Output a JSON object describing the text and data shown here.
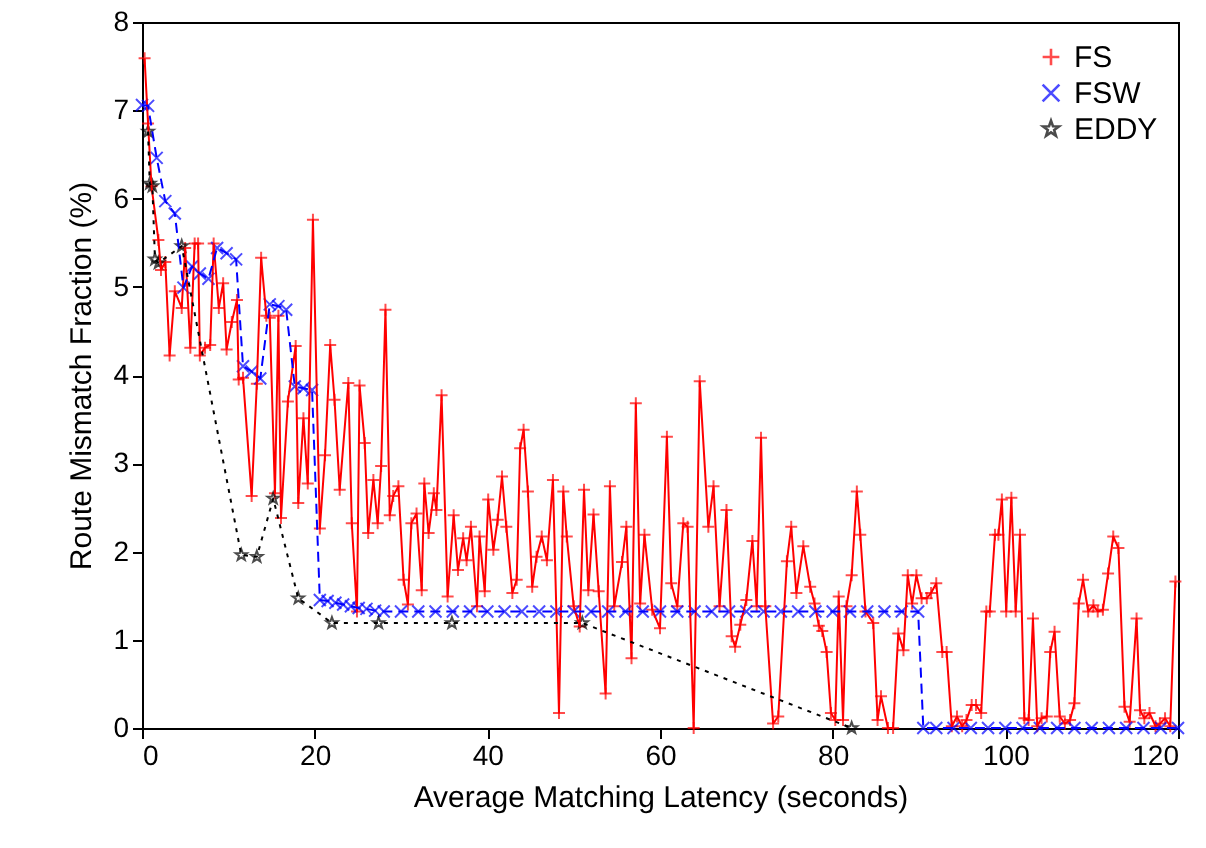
{
  "chart_data": {
    "type": "line",
    "xlabel": "Average Matching Latency (seconds)",
    "ylabel": "Route Mismatch Fraction (%)",
    "xlim": [
      0,
      120
    ],
    "xticks": [
      0,
      20,
      40,
      60,
      80,
      100,
      120
    ],
    "ylim": [
      0,
      8
    ],
    "yticks": [
      0,
      1,
      2,
      3,
      4,
      5,
      6,
      7,
      8
    ],
    "grid": false,
    "legend": "top right",
    "series": [
      {
        "name": "FS",
        "color": "#ff0000",
        "marker": "cross",
        "line_style": "solid",
        "x": [
          0.3,
          0.7,
          1.1,
          1.9,
          2.2,
          2.7,
          3.2,
          3.8,
          4.6,
          5.0,
          5.6,
          6.1,
          6.5,
          6.7,
          7.3,
          7.9,
          8.3,
          8.9,
          9.4,
          9.8,
          10.4,
          11.0,
          11.2,
          11.7,
          12.7,
          13.3,
          13.8,
          14.4,
          14.8,
          15.4,
          15.8,
          16.1,
          16.9,
          17.8,
          18.1,
          18.7,
          19.2,
          19.8,
          20.6,
          21.2,
          21.8,
          22.3,
          22.9,
          23.9,
          24.3,
          24.9,
          25.2,
          25.8,
          26.2,
          26.8,
          27.3,
          27.7,
          28.2,
          28.7,
          29.1,
          29.7,
          30.3,
          30.8,
          31.2,
          31.8,
          32.4,
          32.7,
          33.2,
          33.8,
          34.1,
          34.7,
          35.4,
          36.1,
          36.6,
          37.2,
          37.6,
          38.1,
          38.8,
          39.1,
          39.7,
          40.1,
          40.7,
          41.2,
          41.7,
          42.2,
          42.9,
          43.4,
          43.8,
          44.2,
          44.7,
          45.2,
          45.7,
          46.3,
          46.9,
          47.6,
          48.3,
          48.8,
          49.2,
          50.0,
          50.7,
          51.2,
          51.7,
          52.3,
          52.9,
          53.7,
          54.2,
          54.7,
          55.6,
          56.1,
          56.7,
          57.2,
          57.7,
          58.2,
          59.1,
          60.0,
          60.8,
          61.3,
          62.0,
          62.7,
          63.2,
          63.9,
          64.6,
          65.6,
          66.2,
          66.9,
          67.7,
          68.3,
          68.7,
          69.3,
          70.0,
          70.7,
          71.2,
          71.7,
          72.2,
          73.1,
          73.7,
          74.7,
          75.2,
          75.8,
          76.6,
          77.4,
          77.9,
          78.4,
          78.8,
          79.3,
          79.8,
          80.3,
          80.7,
          81.2,
          81.6,
          82.2,
          82.8,
          83.2,
          83.8,
          84.7,
          85.2,
          85.6,
          86.4,
          87.0,
          87.6,
          88.2,
          88.7,
          89.2,
          89.7,
          90.3,
          90.9,
          91.4,
          92.0,
          92.7,
          93.2,
          93.8,
          94.4,
          95.0,
          95.5,
          96.1,
          96.6,
          97.2,
          97.8,
          98.2,
          98.8,
          99.2,
          99.6,
          100.1,
          100.7,
          101.2,
          101.7,
          102.2,
          102.7,
          103.2,
          103.7,
          104.2,
          104.8,
          105.2,
          105.7,
          106.3,
          106.9,
          107.5,
          108.0,
          108.5,
          109.0,
          109.6,
          110.2,
          110.7,
          111.3,
          111.9,
          112.5,
          113.1,
          113.8,
          114.4,
          115.2,
          115.6,
          116.1,
          116.7,
          117.4,
          117.9,
          118.5,
          119.1,
          119.7
        ],
        "values": [
          7.59,
          6.85,
          6.14,
          5.53,
          5.19,
          5.28,
          4.22,
          4.95,
          4.76,
          5.44,
          4.31,
          5.49,
          5.49,
          4.22,
          4.31,
          4.34,
          5.49,
          4.76,
          5.04,
          4.29,
          4.6,
          4.85,
          3.95,
          3.97,
          2.63,
          3.9,
          5.33,
          4.67,
          4.65,
          2.66,
          4.67,
          2.38,
          3.7,
          4.33,
          2.55,
          3.51,
          2.77,
          5.76,
          2.26,
          3.09,
          4.34,
          3.72,
          2.7,
          3.91,
          2.32,
          1.32,
          3.88,
          3.23,
          2.21,
          2.81,
          2.32,
          2.97,
          4.74,
          2.41,
          2.63,
          2.74,
          1.68,
          1.4,
          2.32,
          2.43,
          1.56,
          2.77,
          2.21,
          2.66,
          2.47,
          3.77,
          1.49,
          2.41,
          1.79,
          2.15,
          1.9,
          2.28,
          1.38,
          2.17,
          1.55,
          2.59,
          2.02,
          2.36,
          2.85,
          2.28,
          1.53,
          1.68,
          3.17,
          3.38,
          2.68,
          1.6,
          1.94,
          2.17,
          1.9,
          2.81,
          0.17,
          2.68,
          2.17,
          1.38,
          1.15,
          2.7,
          1.56,
          2.42,
          1.55,
          0.39,
          2.74,
          1.38,
          1.88,
          2.28,
          0.79,
          3.68,
          1.41,
          2.19,
          1.34,
          1.13,
          3.3,
          1.64,
          1.38,
          2.32,
          2.28,
          0,
          3.93,
          2.28,
          2.74,
          1.38,
          2.47,
          1.04,
          0.92,
          1.17,
          1.45,
          2.12,
          1.38,
          3.29,
          1.38,
          0.05,
          0.13,
          1.89,
          2.28,
          1.53,
          2.06,
          1.6,
          1.41,
          1.16,
          1.1,
          0.86,
          0.17,
          0.09,
          1.49,
          0.09,
          1.38,
          1.73,
          2.68,
          2.19,
          1.32,
          1.19,
          0.09,
          0.36,
          0,
          0,
          1.07,
          0.88,
          1.73,
          1.41,
          1.73,
          1.47,
          1.47,
          1.53,
          1.64,
          0.86,
          0.86,
          0.02,
          0.13,
          0.02,
          0.09,
          0.26,
          0.26,
          0.17,
          1.32,
          1.32,
          2.19,
          2.19,
          2.59,
          1.32,
          2.61,
          1.32,
          2.19,
          0.11,
          0.09,
          1.24,
          0.02,
          0.11,
          0.13,
          0.86,
          1.09,
          0.13,
          0.05,
          0.09,
          0.28,
          1.41,
          1.68,
          1.32,
          1.39,
          1.32,
          1.34,
          1.75,
          2.17,
          2.04,
          0.24,
          0.07,
          1.24,
          0.2,
          0.11,
          0.17,
          0.02,
          0.05,
          0.11,
          0.02,
          1.66
        ]
      },
      {
        "name": "FSW",
        "color": "#0000ff",
        "marker": "x",
        "line_style": "dashed",
        "x": [
          0,
          0.7,
          1.7,
          2.7,
          3.8,
          4.8,
          5.8,
          6.7,
          7.7,
          8.7,
          9.8,
          10.9,
          11.7,
          12.7,
          13.7,
          14.8,
          15.8,
          16.7,
          17.7,
          18.7,
          19.7,
          20.6,
          21.5,
          22.4,
          23.3,
          24.2,
          25.1,
          26,
          27,
          28,
          30,
          32,
          34,
          36,
          38,
          40,
          42,
          44,
          46,
          48,
          50,
          52,
          54,
          56,
          58,
          60,
          62,
          64,
          66,
          68,
          70,
          72,
          74,
          76,
          78,
          80,
          82,
          84,
          86,
          88,
          89.9,
          90.5,
          92,
          94,
          96,
          98,
          100,
          102,
          104,
          106,
          108,
          110,
          112,
          114,
          116,
          118,
          120
        ],
        "values": [
          7.06,
          7.05,
          6.46,
          5.97,
          5.83,
          4.99,
          5.23,
          5.15,
          5.09,
          5.44,
          5.38,
          5.31,
          4.1,
          4.04,
          3.96,
          4.8,
          4.78,
          4.74,
          3.87,
          3.85,
          3.83,
          1.45,
          1.44,
          1.42,
          1.4,
          1.38,
          1.36,
          1.35,
          1.33,
          1.32,
          1.32,
          1.32,
          1.32,
          1.32,
          1.32,
          1.32,
          1.32,
          1.32,
          1.32,
          1.32,
          1.32,
          1.32,
          1.32,
          1.32,
          1.32,
          1.32,
          1.32,
          1.32,
          1.32,
          1.32,
          1.32,
          1.32,
          1.32,
          1.32,
          1.32,
          1.32,
          1.32,
          1.32,
          1.32,
          1.32,
          1.32,
          0,
          0,
          0,
          0,
          0,
          0,
          0,
          0,
          0,
          0,
          0,
          0,
          0,
          0,
          0,
          0
        ]
      },
      {
        "name": "EDDY",
        "color": "#000000",
        "marker": "star",
        "line_style": "dotted",
        "x": [
          0.7,
          0.9,
          1.2,
          1.5,
          1.9,
          4.6,
          11.5,
          13.3,
          15.2,
          18.1,
          22.0,
          27.4,
          35.9,
          51.0,
          82.2
        ],
        "values": [
          6.76,
          6.17,
          6.14,
          5.31,
          5.27,
          5.46,
          1.96,
          1.94,
          2.6,
          1.47,
          1.19,
          1.19,
          1.19,
          1.19,
          0
        ]
      }
    ]
  }
}
